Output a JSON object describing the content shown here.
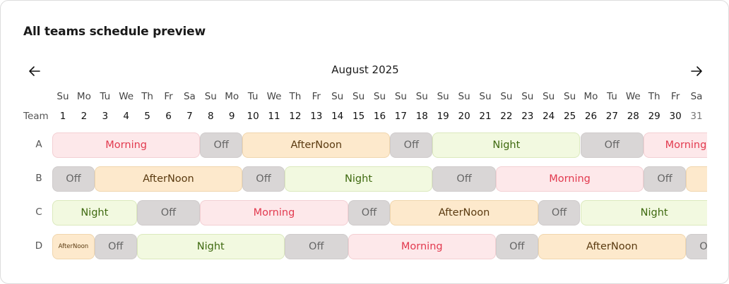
{
  "title": "All teams schedule preview",
  "month_label": "August 2025",
  "nav": {
    "prev": "arrow-left-icon",
    "next": "arrow-right-icon"
  },
  "team_header": "Team",
  "days": [
    {
      "dow": "Su",
      "num": "1"
    },
    {
      "dow": "Mo",
      "num": "2"
    },
    {
      "dow": "Tu",
      "num": "3"
    },
    {
      "dow": "We",
      "num": "4"
    },
    {
      "dow": "Th",
      "num": "5"
    },
    {
      "dow": "Fr",
      "num": "6"
    },
    {
      "dow": "Sa",
      "num": "7"
    },
    {
      "dow": "Su",
      "num": "8"
    },
    {
      "dow": "Mo",
      "num": "9"
    },
    {
      "dow": "Tu",
      "num": "10"
    },
    {
      "dow": "We",
      "num": "11"
    },
    {
      "dow": "Th",
      "num": "12"
    },
    {
      "dow": "Fr",
      "num": "13"
    },
    {
      "dow": "Su",
      "num": "14"
    },
    {
      "dow": "Su",
      "num": "15"
    },
    {
      "dow": "Su",
      "num": "16"
    },
    {
      "dow": "Su",
      "num": "17"
    },
    {
      "dow": "Su",
      "num": "18"
    },
    {
      "dow": "Su",
      "num": "19"
    },
    {
      "dow": "Su",
      "num": "20"
    },
    {
      "dow": "Su",
      "num": "21"
    },
    {
      "dow": "Su",
      "num": "22"
    },
    {
      "dow": "Su",
      "num": "23"
    },
    {
      "dow": "Su",
      "num": "24"
    },
    {
      "dow": "Su",
      "num": "25"
    },
    {
      "dow": "Mo",
      "num": "26"
    },
    {
      "dow": "Tu",
      "num": "27"
    },
    {
      "dow": "We",
      "num": "28"
    },
    {
      "dow": "Th",
      "num": "29"
    },
    {
      "dow": "Fr",
      "num": "30"
    },
    {
      "dow": "Sa",
      "num": "31",
      "muted": true
    }
  ],
  "teams": [
    {
      "name": "A",
      "segments": [
        {
          "label": "Morning",
          "type": "morning",
          "start": 1,
          "days": 7
        },
        {
          "label": "Off",
          "type": "off",
          "start": 8,
          "days": 2
        },
        {
          "label": "AfterNoon",
          "type": "afternoon",
          "start": 10,
          "days": 7
        },
        {
          "label": "Off",
          "type": "off",
          "start": 17,
          "days": 2
        },
        {
          "label": "Night",
          "type": "night",
          "start": 19,
          "days": 7
        },
        {
          "label": "Off",
          "type": "off",
          "start": 26,
          "days": 3
        },
        {
          "label": "Morning",
          "type": "morning",
          "start": 29,
          "days": 4
        }
      ]
    },
    {
      "name": "B",
      "segments": [
        {
          "label": "Off",
          "type": "off",
          "start": 1,
          "days": 2
        },
        {
          "label": "AfterNoon",
          "type": "afternoon",
          "start": 3,
          "days": 7
        },
        {
          "label": "Off",
          "type": "off",
          "start": 10,
          "days": 2
        },
        {
          "label": "Night",
          "type": "night",
          "start": 12,
          "days": 7
        },
        {
          "label": "Off",
          "type": "off",
          "start": 19,
          "days": 3
        },
        {
          "label": "Morning",
          "type": "morning",
          "start": 22,
          "days": 7
        },
        {
          "label": "Off",
          "type": "off",
          "start": 29,
          "days": 2
        },
        {
          "label": "",
          "type": "afternoon",
          "start": 31,
          "days": 3
        }
      ]
    },
    {
      "name": "C",
      "segments": [
        {
          "label": "Night",
          "type": "night",
          "start": 0,
          "days": 5
        },
        {
          "label": "Off",
          "type": "off",
          "start": 5,
          "days": 3
        },
        {
          "label": "Morning",
          "type": "morning",
          "start": 8,
          "days": 7
        },
        {
          "label": "Off",
          "type": "off",
          "start": 15,
          "days": 2
        },
        {
          "label": "AfterNoon",
          "type": "afternoon",
          "start": 17,
          "days": 7
        },
        {
          "label": "Off",
          "type": "off",
          "start": 24,
          "days": 2
        },
        {
          "label": "Night",
          "type": "night",
          "start": 26,
          "days": 7
        }
      ]
    },
    {
      "name": "D",
      "segments": [
        {
          "label": "AfterNoon",
          "type": "afternoon",
          "start": 1,
          "days": 2,
          "tiny": true
        },
        {
          "label": "Off",
          "type": "off",
          "start": 3,
          "days": 2
        },
        {
          "label": "Night",
          "type": "night",
          "start": 5,
          "days": 7
        },
        {
          "label": "Off",
          "type": "off",
          "start": 12,
          "days": 3
        },
        {
          "label": "Morning",
          "type": "morning",
          "start": 15,
          "days": 7
        },
        {
          "label": "Off",
          "type": "off",
          "start": 22,
          "days": 2
        },
        {
          "label": "AfterNoon",
          "type": "afternoon",
          "start": 24,
          "days": 7
        },
        {
          "label": "Off",
          "type": "off",
          "start": 31,
          "days": 2
        }
      ]
    }
  ]
}
